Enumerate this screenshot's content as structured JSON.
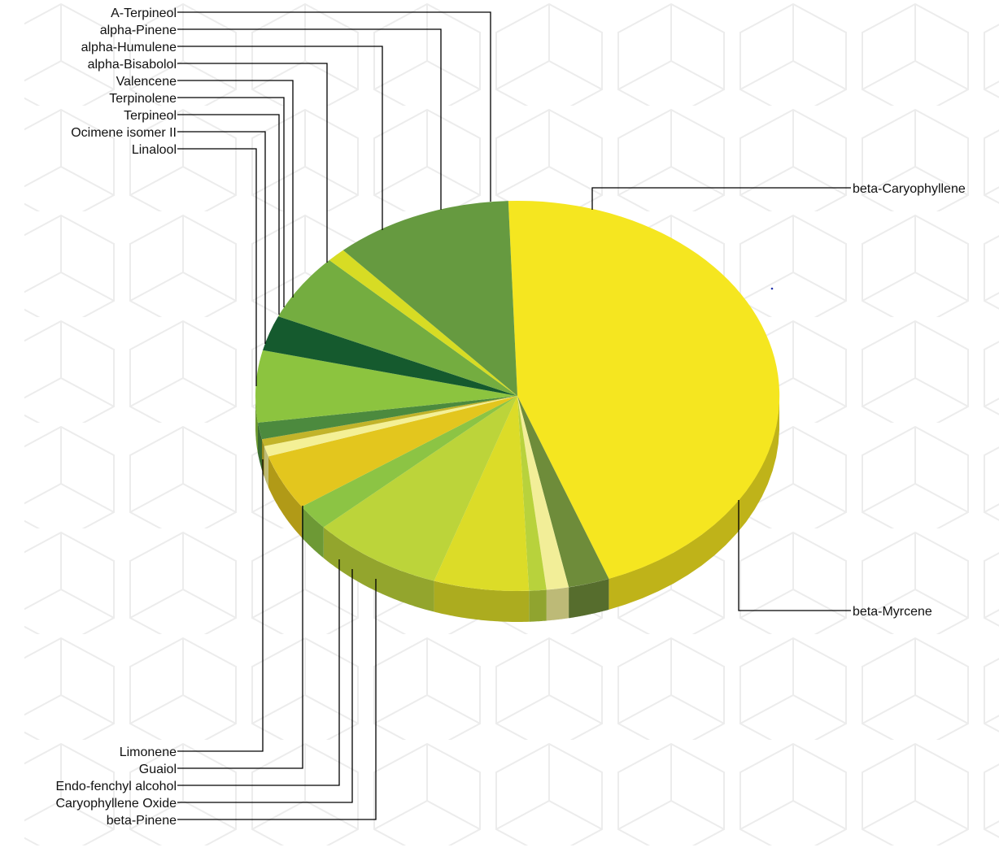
{
  "chart_data": {
    "type": "pie",
    "title": "",
    "start_angle_deg": 92,
    "series": [
      {
        "name": "beta-Myrcene",
        "value": 46.0,
        "color": "#F5E620"
      },
      {
        "name": "beta-Pinene",
        "value": 2.6,
        "color": "#6E8C3A"
      },
      {
        "name": "Caryophyllene Oxide",
        "value": 1.4,
        "color": "#F2EE98"
      },
      {
        "name": "Endo-fenchyl alcohol",
        "value": 1.1,
        "color": "#B8D23C"
      },
      {
        "name": "Guaiol",
        "value": 6.0,
        "color": "#DCDC28"
      },
      {
        "name": "Limonene",
        "value": 8.3,
        "color": "#BCD43A"
      },
      {
        "name": "Linalool",
        "value": 2.2,
        "color": "#8CC444"
      },
      {
        "name": "Ocimene isomer II",
        "value": 4.7,
        "color": "#E3C61E"
      },
      {
        "name": "Terpineol",
        "value": 0.9,
        "color": "#F4F096"
      },
      {
        "name": "Terpinolene",
        "value": 0.6,
        "color": "#C2B42A"
      },
      {
        "name": "Valencene",
        "value": 1.4,
        "color": "#4C8A3E"
      },
      {
        "name": "alpha-Bisabolol",
        "value": 6.1,
        "color": "#8CC43F"
      },
      {
        "name": "alpha-Humulene",
        "value": 3.0,
        "color": "#155A2E"
      },
      {
        "name": "alpha-Pinene",
        "value": 5.7,
        "color": "#74AD40"
      },
      {
        "name": "A-Terpineol",
        "value": 1.2,
        "color": "#D7DC24"
      },
      {
        "name": "beta-Caryophyllene",
        "value": 11.3,
        "color": "#669A40"
      }
    ],
    "legend": "leader-lines"
  }
}
